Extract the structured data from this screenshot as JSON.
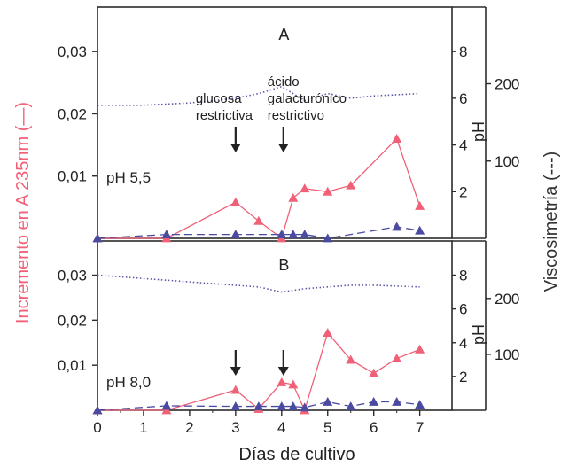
{
  "chart_data": [
    {
      "type": "line",
      "panel_label": "A",
      "condition": "pH 5,5",
      "x": [
        0,
        1.5,
        3,
        3.5,
        4,
        4.25,
        4.5,
        5,
        5.5,
        6.5,
        7
      ],
      "series": [
        {
          "name": "Incremento en A 235nm",
          "axis": "left",
          "color": "#f06077",
          "marker": "triangle",
          "line": "solid",
          "x": [
            0,
            1.5,
            3,
            3.5,
            4,
            4.25,
            4.5,
            5,
            5.5,
            6.5,
            7
          ],
          "values": [
            0,
            0,
            0.0058,
            0.0028,
            0,
            0.0065,
            0.008,
            0.0075,
            0.0085,
            0.016,
            0.0052
          ]
        },
        {
          "name": "Viscosimetría",
          "axis": "right-outer",
          "color": "#4a4aa0",
          "marker": "triangle",
          "line": "dashed",
          "x": [
            0,
            1.5,
            3,
            4,
            4.25,
            4.5,
            5,
            6.5,
            7
          ],
          "values": [
            0,
            5,
            5,
            5,
            5,
            5,
            0,
            15,
            10
          ]
        },
        {
          "name": "pH",
          "axis": "right-inner",
          "color": "#5a5aa8",
          "line": "dotted",
          "x": [
            0,
            1,
            2,
            3,
            3.5,
            4,
            4.5,
            5,
            5.5,
            6,
            7
          ],
          "values": [
            5.7,
            5.7,
            5.8,
            6.0,
            6.2,
            6.5,
            5.9,
            6.2,
            6.0,
            6.1,
            6.2
          ]
        }
      ],
      "annotations": [
        {
          "text_lines": [
            "glucosa",
            "restrictiva"
          ],
          "x": 3
        },
        {
          "text_lines": [
            "ácido",
            "galacturónico",
            "restrictivo"
          ],
          "x": 4
        }
      ]
    },
    {
      "type": "line",
      "panel_label": "B",
      "condition": "pH 8,0",
      "series": [
        {
          "name": "Incremento en A 235nm",
          "axis": "left",
          "color": "#f06077",
          "marker": "triangle",
          "line": "solid",
          "x": [
            0,
            1.5,
            3,
            3.5,
            4,
            4.25,
            4.5,
            5,
            5.5,
            6,
            6.5,
            7
          ],
          "values": [
            0,
            0,
            0.0045,
            0.0003,
            0.0062,
            0.0057,
            0,
            0.0172,
            0.0112,
            0.0082,
            0.0115,
            0.0135
          ]
        },
        {
          "name": "Viscosimetría",
          "axis": "right-outer",
          "color": "#4a4aa0",
          "marker": "triangle",
          "line": "dashed",
          "x": [
            0,
            1.5,
            3,
            3.5,
            4,
            4.25,
            4.5,
            5,
            5.5,
            6,
            6.5,
            7
          ],
          "values": [
            0,
            8,
            7,
            7,
            7,
            7,
            5,
            15,
            7,
            15,
            15,
            10
          ]
        },
        {
          "name": "pH",
          "axis": "right-inner",
          "color": "#5a5aa8",
          "line": "dotted",
          "x": [
            0,
            1,
            2,
            3,
            3.5,
            4,
            4.5,
            5,
            5.5,
            6,
            7
          ],
          "values": [
            8.0,
            7.8,
            7.6,
            7.4,
            7.3,
            7.0,
            7.2,
            7.3,
            7.4,
            7.4,
            7.3
          ]
        }
      ],
      "annotations": [
        {
          "text_lines": [],
          "x": 3
        },
        {
          "text_lines": [],
          "x": 4
        }
      ]
    }
  ],
  "axes": {
    "xlabel": "Días de cultivo",
    "x_ticks": [
      "0",
      "1",
      "2",
      "3",
      "4",
      "5",
      "6",
      "7"
    ],
    "xlim": [
      0,
      7.7
    ],
    "ylabel_left": "Incremento en A 235nm (—)",
    "ylim_left": [
      0,
      0.036
    ],
    "left_ticks": [
      "0,01",
      "0,02",
      "0,03"
    ],
    "left_tick_values": [
      0.01,
      0.02,
      0.03
    ],
    "ylabel_ph": "pH",
    "ylim_ph": [
      0,
      9.6
    ],
    "ph_ticks": [
      "2",
      "4",
      "6",
      "8"
    ],
    "ph_tick_values": [
      2,
      4,
      6,
      8
    ],
    "ylabel_visc": "Viscosimetría (---)",
    "ylim_visc": [
      0,
      290
    ],
    "visc_ticks": [
      "100",
      "200"
    ],
    "visc_tick_values": [
      100,
      200
    ]
  },
  "colors": {
    "axis": "#2b2b2b",
    "accent_red": "#f06077",
    "accent_blue": "#4a4aa0"
  }
}
